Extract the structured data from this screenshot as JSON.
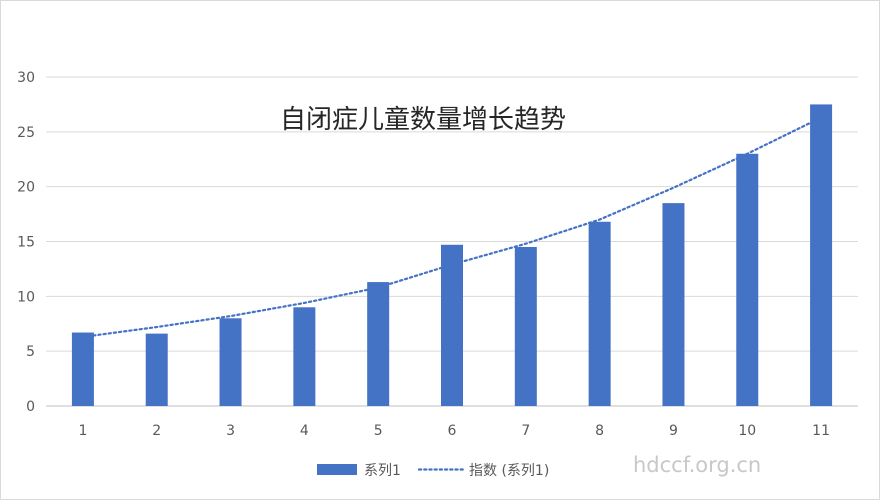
{
  "chart_data": {
    "type": "bar",
    "title": "自闭症儿童数量增长趋势",
    "xlabel": "",
    "ylabel": "",
    "categories": [
      "1",
      "2",
      "3",
      "4",
      "5",
      "6",
      "7",
      "8",
      "9",
      "10",
      "11"
    ],
    "series": [
      {
        "name": "系列1",
        "type": "bar",
        "values": [
          6.7,
          6.6,
          8.0,
          9.0,
          11.3,
          14.7,
          14.5,
          16.8,
          18.5,
          23.0,
          27.5
        ]
      },
      {
        "name": "指数 (系列1)",
        "type": "exponential-trendline",
        "values": [
          6.3,
          7.2,
          8.2,
          9.4,
          10.8,
          12.9,
          14.8,
          17.0,
          19.9,
          23.0,
          26.3
        ]
      }
    ],
    "ylim": [
      0,
      30
    ],
    "yticks": [
      0,
      5,
      10,
      15,
      20,
      25,
      30
    ],
    "grid": true,
    "legend": "bottom",
    "colors": {
      "bar": "#4472C4",
      "trend": "#4472C4"
    }
  },
  "watermark": "hdccf.org.cn"
}
